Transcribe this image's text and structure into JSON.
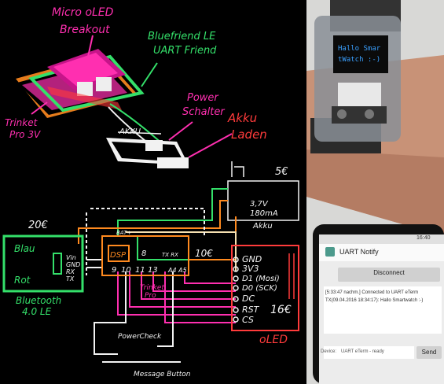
{
  "sketch": {
    "labels": {
      "micro_oled": "Micro oLED",
      "breakout": "Breakout",
      "bluefriend_le": "Bluefriend LE",
      "uart_friend": "UART Friend",
      "trinket": "Trinket",
      "pro_3v": "Pro 3V",
      "power": "Power",
      "schalter": "Schalter",
      "akku": "Akku",
      "laden": "Laden",
      "akku_small": "AKKU",
      "price_battery": "5€",
      "battery_v": "3,7V",
      "battery_ma": "180mA",
      "battery_label": "Akku",
      "price_ble": "20€",
      "blau": "Blau",
      "rot": "Rot",
      "bluetooth": "Bluetooth",
      "bluetooth_le": "4.0 LE",
      "price_trinket": "10€",
      "trinket_pro": "Trinket",
      "trinket_pro2": "Pro",
      "dsp": "DSP",
      "bat": "BAT+",
      "pin_gnd": "GND",
      "pin_3v3": "3V3",
      "pin_d1": "D1 (Mosi)",
      "pin_d0": "D0 (SCK)",
      "pin_dc": "DC",
      "pin_rst": "RST",
      "pin_cs": "CS",
      "price_oled": "16€",
      "oled": "oLED",
      "power_check": "PowerCheck",
      "message_button": "Message Button",
      "pin_8": "8",
      "pin_9": "9",
      "pin_10": "10",
      "pin_11": "11",
      "pin_13": "13",
      "pin_a4": "A4 A5",
      "tx_rx": "TX RX",
      "vin": "Vin",
      "gnd_s": "GND",
      "rx": "RX",
      "tx": "TX"
    }
  },
  "photos": {
    "watch_line1": "Hallo Smar",
    "watch_line2": "tWatch :-)",
    "phone": {
      "time": "16:40",
      "app_title": "UART Notify",
      "disconnect": "Disconnect",
      "log_line1": "[5:33:47 nachm.] Connected to UART eTerm",
      "log_line2": "TX(09.04.2016 18:34:17): Hallo Smartwatch :-)",
      "status_label": "Device:",
      "status_value": "UART eTerm - ready",
      "send": "Send"
    }
  },
  "colors": {
    "pink": "#ff2fb0",
    "green": "#34e06a",
    "orange": "#ff8a1f",
    "red": "#ff3b3b",
    "white": "#f2f2f2",
    "cream": "#f5e0b0",
    "oled_blue": "#3aa0ff"
  }
}
